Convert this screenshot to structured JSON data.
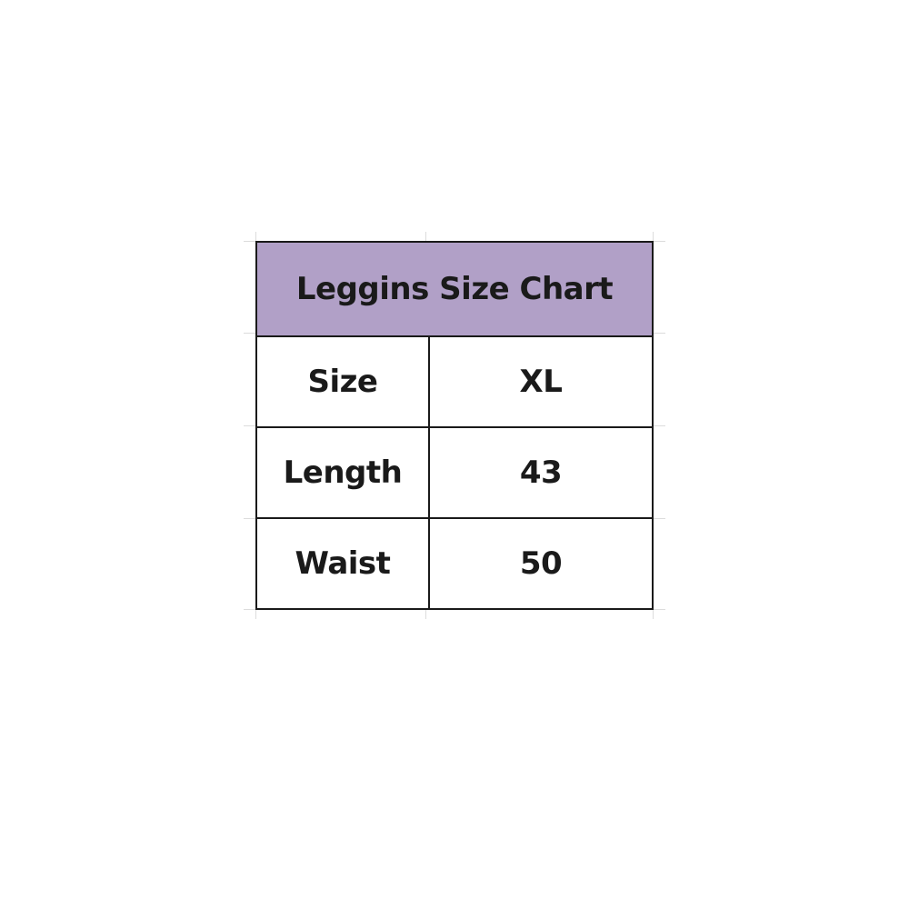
{
  "header": {
    "title": "Leggins Size Chart",
    "background": "#b1a0c7"
  },
  "rows": [
    {
      "label": "Size",
      "value": "XL"
    },
    {
      "label": "Length",
      "value": "43"
    },
    {
      "label": "Waist",
      "value": "50"
    }
  ]
}
